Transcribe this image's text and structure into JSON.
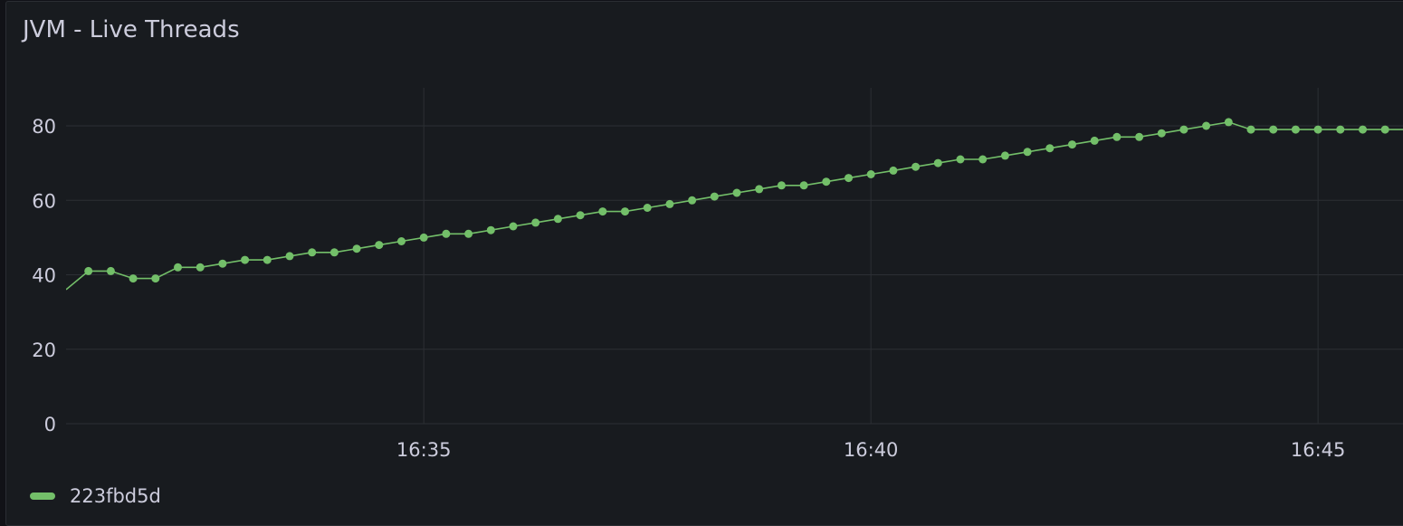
{
  "panel": {
    "title": "JVM - Live Threads"
  },
  "colors": {
    "series": "#73bf69",
    "grid": "#2c2f34",
    "text": "#ccccdc",
    "panel_bg": "#181b1f"
  },
  "chart_data": {
    "type": "line",
    "title": "JVM - Live Threads",
    "xlabel": "",
    "ylabel": "",
    "x_tick_labels": [
      "16:35",
      "16:40",
      "16:45"
    ],
    "x_tick_minutes": [
      35,
      40,
      45
    ],
    "x_range_minutes": [
      31.0,
      45.95
    ],
    "y_ticks": [
      0,
      20,
      40,
      60,
      80
    ],
    "ylim": [
      0,
      90
    ],
    "grid": true,
    "legend": "bottom-left",
    "points": "markers",
    "series": [
      {
        "name": "223fbd5d",
        "color": "#73bf69",
        "x_start_minutes": 31.0,
        "step_seconds": 15,
        "values": [
          36,
          41,
          41,
          39,
          39,
          42,
          42,
          43,
          44,
          44,
          45,
          46,
          46,
          47,
          48,
          49,
          50,
          51,
          51,
          52,
          53,
          54,
          55,
          56,
          57,
          57,
          58,
          59,
          60,
          61,
          62,
          63,
          64,
          64,
          65,
          66,
          67,
          68,
          69,
          70,
          71,
          71,
          72,
          73,
          74,
          75,
          76,
          77,
          77,
          78,
          79,
          80,
          81,
          79,
          79,
          79,
          79,
          79,
          79,
          79,
          79
        ]
      }
    ]
  }
}
